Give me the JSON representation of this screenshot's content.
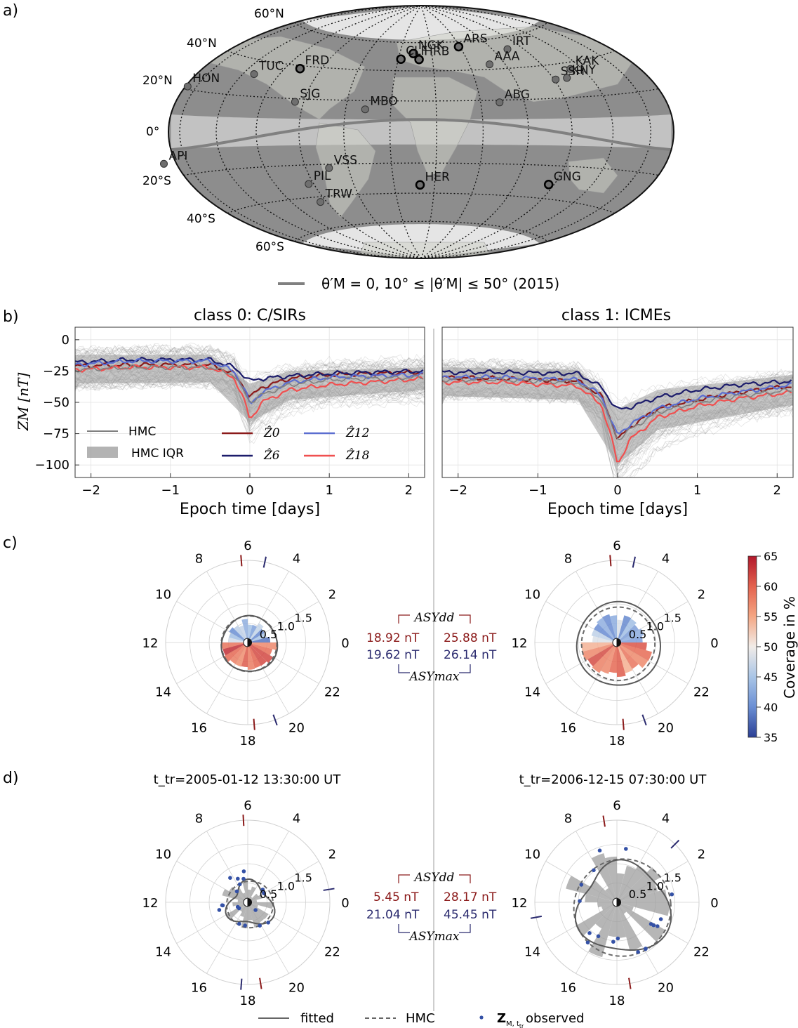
{
  "panel_labels": [
    "a)",
    "b)",
    "c)",
    "d)"
  ],
  "map": {
    "lat_labels": [
      "60°N",
      "40°N",
      "20°N",
      "0°",
      "20°S",
      "40°S",
      "60°S"
    ],
    "stations": [
      {
        "code": "ARS",
        "lat": 56.4,
        "lon": 58.6,
        "bold": true
      },
      {
        "code": "NGK",
        "lat": 52.1,
        "lon": 12.7,
        "bold": true
      },
      {
        "code": "CLF",
        "lat": 48.0,
        "lon": 2.3,
        "bold": true
      },
      {
        "code": "HRB",
        "lat": 47.9,
        "lon": 18.2,
        "bold": true
      },
      {
        "code": "FRD",
        "lat": 38.2,
        "lon": -77.4,
        "bold": true
      },
      {
        "code": "HER",
        "lat": -34.4,
        "lon": 19.2,
        "bold": true
      },
      {
        "code": "GNG",
        "lat": -31.4,
        "lon": 115.7,
        "bold": true
      },
      {
        "code": "IRT",
        "lat": 52.2,
        "lon": 104.5,
        "bold": false
      },
      {
        "code": "AAA",
        "lat": 43.3,
        "lon": 76.9,
        "bold": false
      },
      {
        "code": "KAK",
        "lat": 36.2,
        "lon": 140.2,
        "bold": false
      },
      {
        "code": "SSH",
        "lat": 31.1,
        "lon": 121.2,
        "bold": false
      },
      {
        "code": "KNY",
        "lat": 31.4,
        "lon": 130.9,
        "bold": false
      },
      {
        "code": "TUC",
        "lat": 32.2,
        "lon": -110.7,
        "bold": false
      },
      {
        "code": "HON",
        "lat": 21.3,
        "lon": -158.0,
        "bold": false
      },
      {
        "code": "SJG",
        "lat": 18.1,
        "lon": -66.2,
        "bold": false
      },
      {
        "code": "MBO",
        "lat": 14.4,
        "lon": -16.9,
        "bold": false
      },
      {
        "code": "ABG",
        "lat": 18.6,
        "lon": 72.9,
        "bold": false
      },
      {
        "code": "API",
        "lat": -13.8,
        "lon": -171.8,
        "bold": false
      },
      {
        "code": "VSS",
        "lat": -22.4,
        "lon": -43.6,
        "bold": false
      },
      {
        "code": "PIL",
        "lat": -31.7,
        "lon": -63.9,
        "bold": false
      },
      {
        "code": "TRW",
        "lat": -43.3,
        "lon": -65.4,
        "bold": false
      }
    ],
    "legend_text": "θ′M = 0, 10° ≤ |θ′M| ≤ 50° (2015)"
  },
  "chart_data": [
    {
      "type": "line",
      "title": "class 0: C/SIRs",
      "xlabel": "Epoch time [days]",
      "ylabel": "ZM [nT]",
      "xlim": [
        -2.2,
        2.2
      ],
      "ylim": [
        -110,
        10
      ],
      "xticks": [
        -2,
        -1,
        0,
        1,
        2
      ],
      "yticks": [
        0,
        -25,
        -50,
        -75,
        -100
      ],
      "series": [
        {
          "name": "Ẑ0",
          "color": "#8b1a1a",
          "points": [
            [
              -2.2,
              -21
            ],
            [
              -1.5,
              -20
            ],
            [
              -0.5,
              -20
            ],
            [
              -0.2,
              -27
            ],
            [
              -0.05,
              -40
            ],
            [
              0,
              -46
            ],
            [
              0.15,
              -38
            ],
            [
              0.5,
              -31
            ],
            [
              1.0,
              -28
            ],
            [
              1.5,
              -27
            ],
            [
              2.2,
              -26
            ]
          ]
        },
        {
          "name": "Ẑ6",
          "color": "#1c1c6b",
          "points": [
            [
              -2.2,
              -18
            ],
            [
              -1.5,
              -16
            ],
            [
              -0.5,
              -16
            ],
            [
              -0.2,
              -22
            ],
            [
              -0.05,
              -30
            ],
            [
              0,
              -33
            ],
            [
              0.15,
              -31
            ],
            [
              0.5,
              -29
            ],
            [
              1.0,
              -27
            ],
            [
              1.5,
              -26
            ],
            [
              2.2,
              -25
            ]
          ]
        },
        {
          "name": "Ẑ12",
          "color": "#5b6ed0",
          "points": [
            [
              -2.2,
              -20
            ],
            [
              -1.5,
              -17
            ],
            [
              -0.5,
              -17
            ],
            [
              -0.2,
              -25
            ],
            [
              -0.05,
              -42
            ],
            [
              0,
              -52
            ],
            [
              0.15,
              -42
            ],
            [
              0.5,
              -34
            ],
            [
              1.0,
              -30
            ],
            [
              1.5,
              -29
            ],
            [
              2.2,
              -28
            ]
          ]
        },
        {
          "name": "Ẑ18",
          "color": "#f05050",
          "points": [
            [
              -2.2,
              -24
            ],
            [
              -1.5,
              -22
            ],
            [
              -0.5,
              -22
            ],
            [
              -0.2,
              -30
            ],
            [
              -0.05,
              -52
            ],
            [
              0,
              -64
            ],
            [
              0.15,
              -50
            ],
            [
              0.5,
              -40
            ],
            [
              1.0,
              -36
            ],
            [
              1.5,
              -34
            ],
            [
              2.2,
              -31
            ]
          ]
        },
        {
          "name": "HMC",
          "color": "#808080",
          "points": [
            [
              -2.2,
              -24
            ],
            [
              -1.5,
              -22
            ],
            [
              -0.5,
              -22
            ],
            [
              -0.2,
              -28
            ],
            [
              -0.05,
              -44
            ],
            [
              0,
              -50
            ],
            [
              0.15,
              -44
            ],
            [
              0.5,
              -36
            ],
            [
              1.0,
              -32
            ],
            [
              1.5,
              -31
            ],
            [
              2.2,
              -30
            ]
          ]
        }
      ],
      "iqr": {
        "upper": [
          [
            -2.2,
            -12
          ],
          [
            -0.5,
            -12
          ],
          [
            0,
            -35
          ],
          [
            0.5,
            -25
          ],
          [
            2.2,
            -22
          ]
        ],
        "lower": [
          [
            -2.2,
            -35
          ],
          [
            -0.5,
            -34
          ],
          [
            0,
            -66
          ],
          [
            0.5,
            -48
          ],
          [
            2.2,
            -40
          ]
        ]
      },
      "legend": [
        {
          "label": "HMC",
          "kind": "line",
          "color": "#7f7f7f"
        },
        {
          "label": "HMC IQR",
          "kind": "band",
          "color": "#9a9a9a"
        },
        {
          "label": "Ẑ0",
          "kind": "line",
          "color": "#8b1a1a"
        },
        {
          "label": "Ẑ6",
          "kind": "line",
          "color": "#1c1c6b"
        },
        {
          "label": "Ẑ12",
          "kind": "line",
          "color": "#5b6ed0"
        },
        {
          "label": "Ẑ18",
          "kind": "line",
          "color": "#f05050"
        }
      ],
      "legend_placement": "bottom-left"
    },
    {
      "type": "line",
      "title": "class 1: ICMEs",
      "xlabel": "Epoch time [days]",
      "xlim": [
        -2.2,
        2.2
      ],
      "ylim": [
        -110,
        10
      ],
      "xticks": [
        -2,
        -1,
        0,
        1,
        2
      ],
      "series": [
        {
          "name": "Ẑ0",
          "color": "#8b1a1a",
          "points": [
            [
              -2.2,
              -30
            ],
            [
              -1.5,
              -31
            ],
            [
              -0.5,
              -33
            ],
            [
              -0.2,
              -45
            ],
            [
              -0.05,
              -70
            ],
            [
              0,
              -80
            ],
            [
              0.15,
              -70
            ],
            [
              0.5,
              -55
            ],
            [
              1.0,
              -48
            ],
            [
              1.5,
              -42
            ],
            [
              2.2,
              -37
            ]
          ]
        },
        {
          "name": "Ẑ6",
          "color": "#1c1c6b",
          "points": [
            [
              -2.2,
              -26
            ],
            [
              -1.5,
              -26
            ],
            [
              -0.5,
              -27
            ],
            [
              -0.2,
              -38
            ],
            [
              -0.05,
              -52
            ],
            [
              0,
              -56
            ],
            [
              0.15,
              -54
            ],
            [
              0.5,
              -46
            ],
            [
              1.0,
              -40
            ],
            [
              1.5,
              -36
            ],
            [
              2.2,
              -33
            ]
          ]
        },
        {
          "name": "Ẑ12",
          "color": "#5b6ed0",
          "points": [
            [
              -2.2,
              -30
            ],
            [
              -1.5,
              -30
            ],
            [
              -0.5,
              -32
            ],
            [
              -0.2,
              -45
            ],
            [
              -0.05,
              -70
            ],
            [
              0,
              -76
            ],
            [
              0.15,
              -68
            ],
            [
              0.5,
              -55
            ],
            [
              1.0,
              -47
            ],
            [
              1.5,
              -42
            ],
            [
              2.2,
              -36
            ]
          ]
        },
        {
          "name": "Ẑ18",
          "color": "#f05050",
          "points": [
            [
              -2.2,
              -34
            ],
            [
              -1.5,
              -34
            ],
            [
              -0.5,
              -37
            ],
            [
              -0.2,
              -52
            ],
            [
              -0.05,
              -85
            ],
            [
              0,
              -100
            ],
            [
              0.15,
              -80
            ],
            [
              0.5,
              -62
            ],
            [
              1.0,
              -53
            ],
            [
              1.5,
              -47
            ],
            [
              2.2,
              -42
            ]
          ]
        },
        {
          "name": "HMC",
          "color": "#808080",
          "points": [
            [
              -2.2,
              -32
            ],
            [
              -1.5,
              -32
            ],
            [
              -0.5,
              -34
            ],
            [
              -0.2,
              -48
            ],
            [
              -0.05,
              -72
            ],
            [
              0,
              -80
            ],
            [
              0.15,
              -72
            ],
            [
              0.5,
              -58
            ],
            [
              1.0,
              -50
            ],
            [
              1.5,
              -45
            ],
            [
              2.2,
              -40
            ]
          ]
        }
      ],
      "iqr": {
        "upper": [
          [
            -2.2,
            -22
          ],
          [
            -0.5,
            -24
          ],
          [
            0,
            -55
          ],
          [
            0.5,
            -40
          ],
          [
            2.2,
            -28
          ]
        ],
        "lower": [
          [
            -2.2,
            -45
          ],
          [
            -0.5,
            -48
          ],
          [
            0,
            -100
          ],
          [
            0.5,
            -72
          ],
          [
            2.2,
            -52
          ]
        ]
      }
    },
    {
      "type": "polar",
      "panel": "c",
      "hour_labels": [
        "0",
        "2",
        "4",
        "6",
        "8",
        "10",
        "12",
        "14",
        "16",
        "18",
        "20",
        "22"
      ],
      "radial_ticks": [
        "0.5",
        "1.0",
        "1.5"
      ],
      "coverage_top_pct": 43,
      "coverage_bottom_pct": 60,
      "hmc_radius": 0.72,
      "fitted_radius": 0.72
    },
    {
      "type": "polar",
      "panel": "c",
      "hour_labels": [
        "0",
        "2",
        "4",
        "6",
        "8",
        "10",
        "12",
        "14",
        "16",
        "18",
        "20",
        "22"
      ],
      "radial_ticks": [
        "0.5",
        "1.0",
        "1.5"
      ],
      "coverage_top_pct": 44,
      "coverage_bottom_pct": 58,
      "hmc_radius": 0.95,
      "fitted_radius": 1.08
    },
    {
      "type": "polar",
      "panel": "d",
      "title": "t_tr=2005-01-12 13:30:00 UT",
      "hour_labels": [
        "0",
        "2",
        "4",
        "6",
        "8",
        "10",
        "12",
        "14",
        "16",
        "18",
        "20",
        "22"
      ],
      "radial_ticks": [
        "0.5",
        "1.0",
        "1.5"
      ]
    },
    {
      "type": "polar",
      "panel": "d",
      "title": "t_tr=2006-12-15 07:30:00 UT",
      "hour_labels": [
        "0",
        "2",
        "4",
        "6",
        "8",
        "10",
        "12",
        "14",
        "16",
        "18",
        "20",
        "22"
      ],
      "radial_ticks": [
        "0.5",
        "1.0",
        "1.5"
      ]
    }
  ],
  "asy": {
    "c": {
      "dd_left": "18.92 nT",
      "dd_right": "25.88 nT",
      "max_left": "19.62 nT",
      "max_right": "26.14 nT"
    },
    "d": {
      "dd_left": "5.45 nT",
      "dd_right": "28.17 nT",
      "max_left": "21.04 nT",
      "max_right": "45.45 nT"
    },
    "dd_label": "ASYdd",
    "max_label": "ASYmax",
    "dd_color": "#8b1a1a",
    "max_color": "#2a2a6e"
  },
  "colorbar": {
    "label": "Coverage in %",
    "ticks": [
      "65",
      "60",
      "55",
      "50",
      "45",
      "40",
      "35"
    ],
    "min": 35,
    "max": 65
  },
  "bottom_legend": [
    {
      "label": "fitted",
      "kind": "solid"
    },
    {
      "label": "HMC",
      "kind": "dashed"
    },
    {
      "label": "observed",
      "kind": "dot"
    }
  ]
}
